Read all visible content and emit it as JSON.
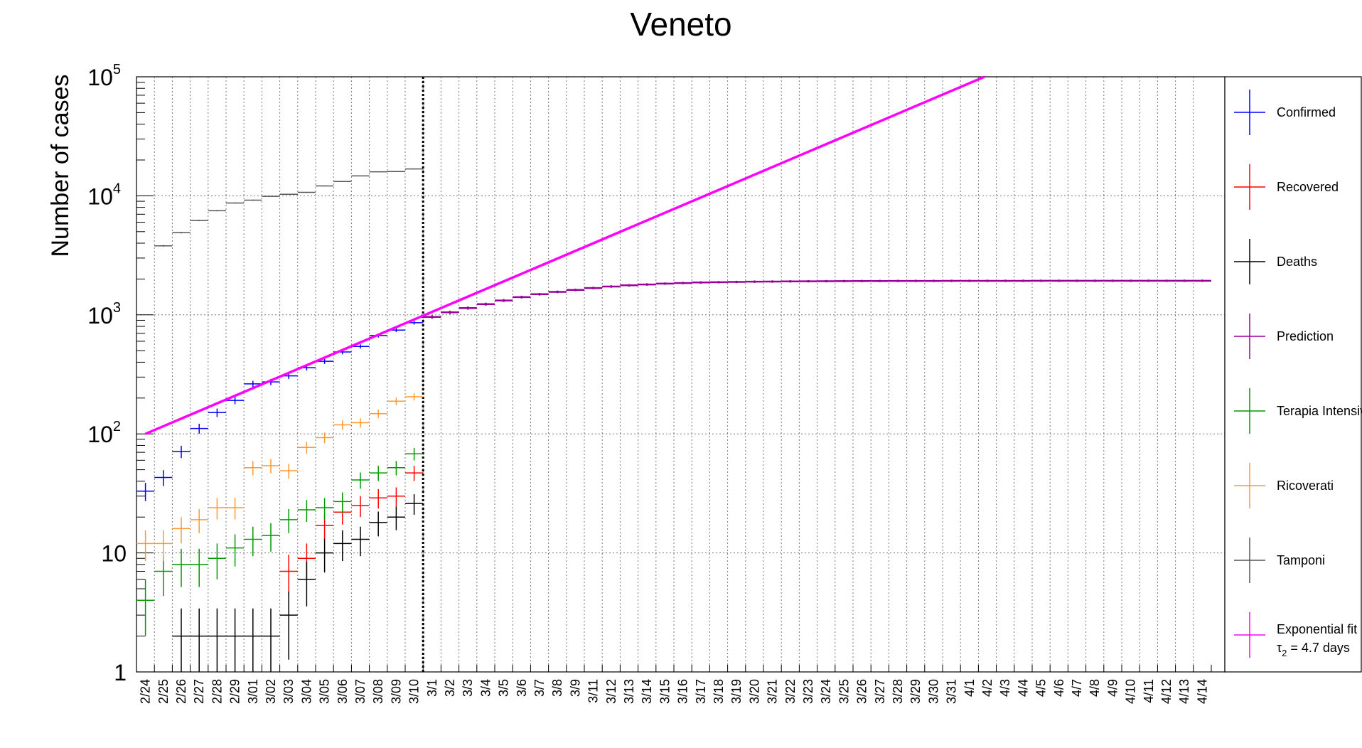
{
  "chart_data": {
    "type": "scatter",
    "title": "Veneto",
    "xlabel": "",
    "ylabel": "Number of cases",
    "y_scale": "log",
    "ylim": [
      1,
      100000
    ],
    "y_tick_labels": [
      {
        "value": 1,
        "base": "1",
        "exp": ""
      },
      {
        "value": 10,
        "base": "10",
        "exp": ""
      },
      {
        "value": 100,
        "base": "10",
        "exp": "2"
      },
      {
        "value": 1000,
        "base": "10",
        "exp": "3"
      },
      {
        "value": 10000,
        "base": "10",
        "exp": "4"
      },
      {
        "value": 100000,
        "base": "10",
        "exp": "5"
      }
    ],
    "grid": true,
    "categories": [
      "2/24",
      "2/25",
      "2/26",
      "2/27",
      "2/28",
      "2/29",
      "3/01",
      "3/02",
      "3/03",
      "3/04",
      "3/05",
      "3/06",
      "3/07",
      "3/08",
      "3/09",
      "3/10",
      "3/1",
      "3/2",
      "3/3",
      "3/4",
      "3/5",
      "3/6",
      "3/7",
      "3/8",
      "3/9",
      "3/11",
      "3/12",
      "3/13",
      "3/14",
      "3/15",
      "3/16",
      "3/17",
      "3/18",
      "3/19",
      "3/20",
      "3/21",
      "3/22",
      "3/23",
      "3/24",
      "3/25",
      "3/26",
      "3/27",
      "3/28",
      "3/29",
      "3/30",
      "3/31",
      "4/1",
      "4/2",
      "4/3",
      "4/4",
      "4/5",
      "4/6",
      "4/7",
      "4/8",
      "4/9",
      "4/10",
      "4/11",
      "4/12",
      "4/13",
      "4/14"
    ],
    "vertical_marker_after_category": "3/10",
    "legend_position": "right",
    "series": [
      {
        "name": "Confirmed",
        "color": "#0000ff",
        "start_index": 0,
        "values": [
          33,
          43,
          71,
          111,
          151,
          191,
          263,
          273,
          307,
          360,
          407,
          488,
          543,
          670,
          744,
          858
        ]
      },
      {
        "name": "Recovered",
        "color": "#ff0000",
        "start_index": 8,
        "values": [
          7,
          9,
          17,
          22,
          25,
          29,
          30,
          47
        ]
      },
      {
        "name": "Deaths",
        "color": "#000000",
        "start_index": 0,
        "values": [
          null,
          null,
          2,
          2,
          2,
          2,
          2,
          2,
          3,
          6,
          10,
          12,
          13,
          18,
          20,
          26
        ]
      },
      {
        "name": "Prediction",
        "color": "#990099",
        "start_index": 16,
        "values": [
          960,
          1050,
          1140,
          1230,
          1320,
          1410,
          1490,
          1560,
          1620,
          1680,
          1730,
          1770,
          1800,
          1830,
          1850,
          1870,
          1880,
          1890,
          1900,
          1905,
          1910,
          1915,
          1918,
          1920,
          1922,
          1924,
          1926,
          1927,
          1928,
          1929,
          1930,
          1930,
          1931,
          1931,
          1932,
          1932,
          1932,
          1933,
          1933,
          1933,
          1933,
          1933,
          1933,
          1933
        ]
      },
      {
        "name": "Terapia Intensiva",
        "color": "#009900",
        "start_index": 0,
        "values": [
          4,
          7,
          8,
          8,
          9,
          11,
          13,
          14,
          19,
          23,
          24,
          27,
          41,
          47,
          52,
          68
        ]
      },
      {
        "name": "Ricoverati",
        "color": "#ff9933",
        "start_index": 0,
        "values": [
          12,
          12,
          16,
          19,
          24,
          24,
          52,
          54,
          49,
          77,
          93,
          119,
          124,
          148,
          188,
          205
        ]
      },
      {
        "name": "Tamponi",
        "color": "#555555",
        "start_index": 0,
        "values": [
          null,
          3800,
          4900,
          6200,
          7500,
          8700,
          9200,
          9900,
          10300,
          10700,
          12100,
          13200,
          14700,
          15900,
          16000,
          16800
        ]
      },
      {
        "name": "Exponential fit",
        "color": "#ff00ff",
        "fit": true,
        "x_start": 0.5,
        "y_start": 100,
        "doubling_days": 4.7,
        "y_end_clip": 100000
      }
    ],
    "legend": [
      {
        "label": "Confirmed",
        "color": "#0000ff"
      },
      {
        "label": "Recovered",
        "color": "#ff0000"
      },
      {
        "label": "Deaths",
        "color": "#000000"
      },
      {
        "label": "Prediction",
        "color": "#990099"
      },
      {
        "label": "Terapia Intensiva",
        "color": "#009900"
      },
      {
        "label": "Ricoverati",
        "color": "#ff9933"
      },
      {
        "label": "Tamponi",
        "color": "#555555"
      },
      {
        "label": "Exponential fit",
        "sublabel_symbol": "τ",
        "sublabel_sub": "2",
        "sublabel_rest": " = 4.7 days",
        "color": "#ff00ff"
      }
    ]
  }
}
